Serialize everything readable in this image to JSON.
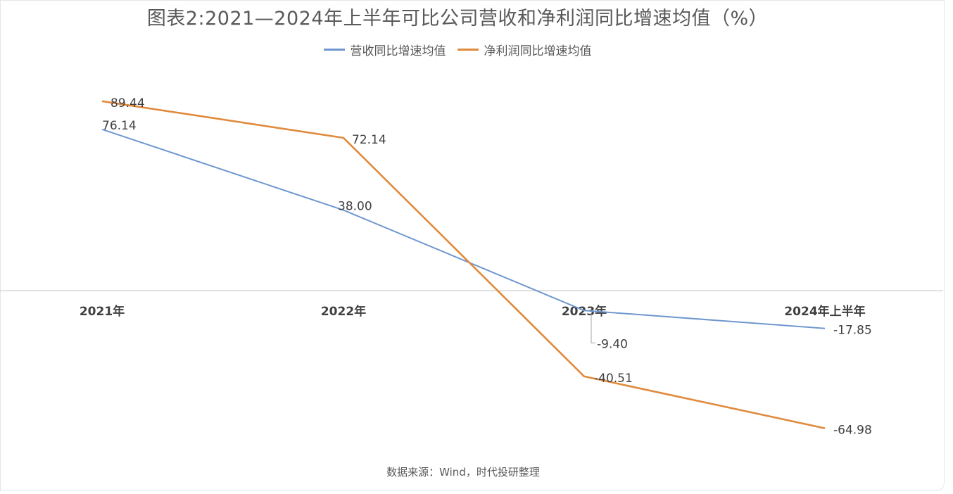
{
  "chart_data": {
    "type": "line",
    "title": "图表2:2021—2024年上半年可比公司营收和净利润同比增速均值（%）",
    "categories": [
      "2021年",
      "2022年",
      "2023年",
      "2024年上半年"
    ],
    "series": [
      {
        "name": "营收同比增速均值",
        "color": "#6f97cf",
        "values": [
          76.14,
          38.0,
          -9.4,
          -17.85
        ],
        "labels": [
          "76.14",
          "38.00",
          "-9.40",
          "-17.85"
        ]
      },
      {
        "name": "净利润同比增速均值",
        "color": "#e08a3c",
        "values": [
          89.44,
          72.14,
          -40.51,
          -64.98
        ],
        "labels": [
          "89.44",
          "72.14",
          "-40.51",
          "-64.98"
        ]
      }
    ],
    "xlabel": "",
    "ylabel": "",
    "ylim": [
      -80,
      110
    ],
    "grid": false,
    "legend_position": "top-center",
    "source": "数据来源：Wind，时代投研整理"
  }
}
